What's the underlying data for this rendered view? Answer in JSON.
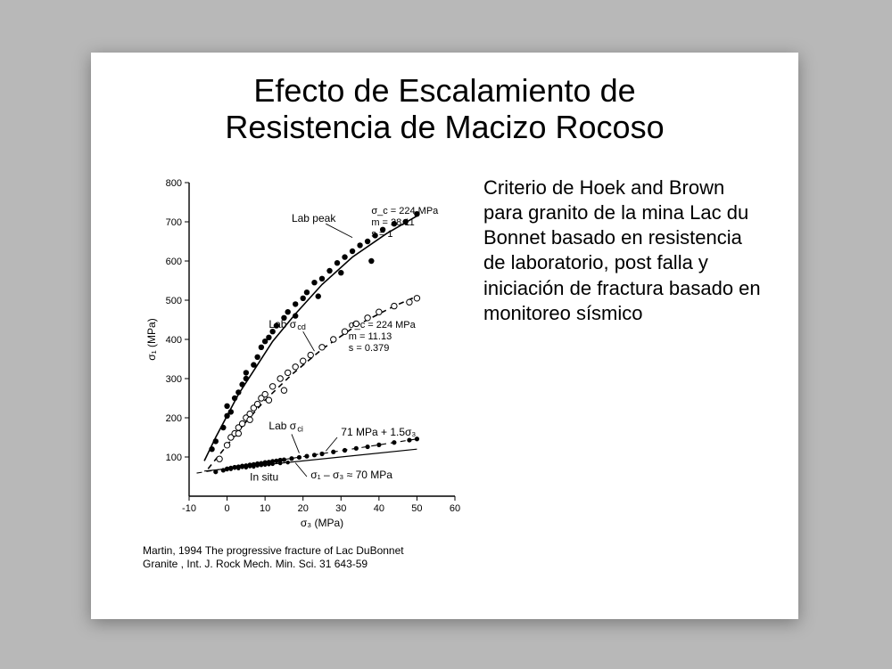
{
  "title_line1": "Efecto de Escalamiento de",
  "title_line2": "Resistencia de Macizo Rocoso",
  "body_text": "Criterio de Hoek and Brown para granito de la mina Lac du Bonnet basado en resistencia de laboratorio, post falla y iniciación de fractura basado en monitoreo sísmico",
  "citation": "Martin, 1994 The progressive fracture of Lac DuBonnet Granite , Int. J. Rock Mech. Min. Sci. 31 643-59",
  "chart": {
    "type": "scatter",
    "background_color": "#ffffff",
    "axis_color": "#000000",
    "grid_color": "#ffffff",
    "x": {
      "label": "σ₃ (MPa)",
      "min": -10,
      "max": 60,
      "ticks": [
        -10,
        0,
        10,
        20,
        30,
        40,
        50,
        60
      ],
      "label_fontsize": 12,
      "tick_fontsize": 11
    },
    "y": {
      "label": "σ₁ (MPa)",
      "min": 0,
      "max": 800,
      "ticks": [
        100,
        200,
        300,
        400,
        500,
        600,
        700,
        800
      ],
      "label_fontsize": 12,
      "tick_fontsize": 11
    },
    "series": [
      {
        "name": "Lab peak",
        "label": "Lab peak",
        "marker": "filled-circle",
        "marker_size": 3.2,
        "marker_color": "#000000",
        "line_style": "solid",
        "line_width": 1.6,
        "line_color": "#000000",
        "params_text": "σ_c = 224 MPa\nm = 28.11\ns = 1",
        "points": [
          [
            -4,
            120
          ],
          [
            -3,
            140
          ],
          [
            -1,
            175
          ],
          [
            0,
            205
          ],
          [
            0,
            230
          ],
          [
            1,
            215
          ],
          [
            2,
            250
          ],
          [
            3,
            265
          ],
          [
            4,
            285
          ],
          [
            5,
            300
          ],
          [
            5,
            315
          ],
          [
            7,
            335
          ],
          [
            8,
            355
          ],
          [
            9,
            380
          ],
          [
            10,
            395
          ],
          [
            11,
            405
          ],
          [
            12,
            420
          ],
          [
            13,
            435
          ],
          [
            15,
            455
          ],
          [
            16,
            470
          ],
          [
            18,
            490
          ],
          [
            20,
            505
          ],
          [
            21,
            520
          ],
          [
            23,
            545
          ],
          [
            25,
            555
          ],
          [
            27,
            575
          ],
          [
            29,
            595
          ],
          [
            31,
            610
          ],
          [
            33,
            625
          ],
          [
            35,
            640
          ],
          [
            37,
            650
          ],
          [
            39,
            665
          ],
          [
            41,
            680
          ],
          [
            44,
            695
          ],
          [
            47,
            700
          ],
          [
            50,
            720
          ],
          [
            38,
            600
          ],
          [
            30,
            570
          ],
          [
            24,
            510
          ],
          [
            18,
            460
          ]
        ],
        "curve": [
          [
            -6,
            90
          ],
          [
            -3,
            150
          ],
          [
            0,
            205
          ],
          [
            3,
            260
          ],
          [
            7,
            320
          ],
          [
            12,
            395
          ],
          [
            18,
            465
          ],
          [
            25,
            540
          ],
          [
            33,
            610
          ],
          [
            42,
            670
          ],
          [
            50,
            715
          ]
        ]
      },
      {
        "name": "Lab sigma_cd",
        "label": "Lab σ_cd",
        "marker": "open-circle",
        "marker_size": 3.2,
        "marker_color": "#000000",
        "marker_fill": "#ffffff",
        "line_style": "dashed",
        "line_width": 1.6,
        "line_color": "#000000",
        "params_text": "σ_c = 224 MPa\nm = 11.13\ns = 0.379",
        "points": [
          [
            -2,
            95
          ],
          [
            0,
            130
          ],
          [
            1,
            150
          ],
          [
            2,
            160
          ],
          [
            3,
            175
          ],
          [
            4,
            185
          ],
          [
            5,
            200
          ],
          [
            6,
            210
          ],
          [
            7,
            225
          ],
          [
            8,
            235
          ],
          [
            9,
            250
          ],
          [
            10,
            260
          ],
          [
            12,
            280
          ],
          [
            14,
            300
          ],
          [
            16,
            315
          ],
          [
            18,
            330
          ],
          [
            20,
            345
          ],
          [
            22,
            360
          ],
          [
            25,
            380
          ],
          [
            28,
            400
          ],
          [
            31,
            420
          ],
          [
            34,
            440
          ],
          [
            37,
            455
          ],
          [
            40,
            470
          ],
          [
            44,
            485
          ],
          [
            48,
            495
          ],
          [
            50,
            505
          ],
          [
            15,
            270
          ],
          [
            11,
            245
          ],
          [
            6,
            195
          ],
          [
            3,
            160
          ]
        ],
        "curve": [
          [
            -5,
            70
          ],
          [
            0,
            130
          ],
          [
            5,
            190
          ],
          [
            10,
            245
          ],
          [
            17,
            310
          ],
          [
            25,
            375
          ],
          [
            34,
            435
          ],
          [
            44,
            485
          ],
          [
            50,
            510
          ]
        ]
      },
      {
        "name": "Lab sigma_ci",
        "label": "Lab σ_ci",
        "marker": "filled-circle",
        "marker_size": 2.6,
        "marker_color": "#000000",
        "line_style": "dashed",
        "line_width": 1.1,
        "line_color": "#000000",
        "eq_text": "71 MPa + 1.5σ₃",
        "points": [
          [
            -3,
            62
          ],
          [
            -1,
            66
          ],
          [
            0,
            70
          ],
          [
            1,
            72
          ],
          [
            2,
            74
          ],
          [
            3,
            75
          ],
          [
            4,
            77
          ],
          [
            5,
            78
          ],
          [
            6,
            80
          ],
          [
            7,
            81
          ],
          [
            8,
            83
          ],
          [
            9,
            84
          ],
          [
            10,
            86
          ],
          [
            11,
            87
          ],
          [
            12,
            89
          ],
          [
            13,
            90
          ],
          [
            14,
            92
          ],
          [
            15,
            93
          ],
          [
            17,
            96
          ],
          [
            19,
            99
          ],
          [
            21,
            102
          ],
          [
            23,
            105
          ],
          [
            25,
            108
          ],
          [
            28,
            113
          ],
          [
            31,
            117
          ],
          [
            34,
            122
          ],
          [
            37,
            126
          ],
          [
            40,
            131
          ],
          [
            44,
            137
          ],
          [
            48,
            143
          ],
          [
            50,
            146
          ]
        ],
        "curve": [
          [
            -8,
            59
          ],
          [
            0,
            71
          ],
          [
            50,
            146
          ]
        ]
      },
      {
        "name": "In situ",
        "label": "In situ",
        "marker": "filled-circle",
        "marker_size": 2.2,
        "marker_color": "#000000",
        "line_style": "solid",
        "line_width": 1.2,
        "line_color": "#000000",
        "eq_text": "σ₁ – σ₃ ≈ 70 MPa",
        "points": [
          [
            0,
            70
          ],
          [
            1,
            71
          ],
          [
            2,
            72
          ],
          [
            3,
            73
          ],
          [
            4,
            74
          ],
          [
            5,
            75
          ],
          [
            6,
            76
          ],
          [
            7,
            77
          ],
          [
            8,
            78
          ],
          [
            9,
            79
          ],
          [
            10,
            80
          ],
          [
            11,
            81
          ],
          [
            12,
            82
          ],
          [
            14,
            84
          ],
          [
            16,
            86
          ],
          [
            1,
            69
          ],
          [
            3,
            71
          ],
          [
            5,
            73
          ],
          [
            7,
            75
          ],
          [
            2,
            73
          ],
          [
            4,
            75
          ],
          [
            6,
            77
          ],
          [
            8,
            79
          ],
          [
            10,
            81
          ],
          [
            12,
            83
          ],
          [
            14,
            85
          ],
          [
            0,
            68
          ],
          [
            -1,
            67
          ]
        ],
        "curve": [
          [
            -6,
            64
          ],
          [
            0,
            70
          ],
          [
            50,
            120
          ]
        ]
      }
    ]
  }
}
